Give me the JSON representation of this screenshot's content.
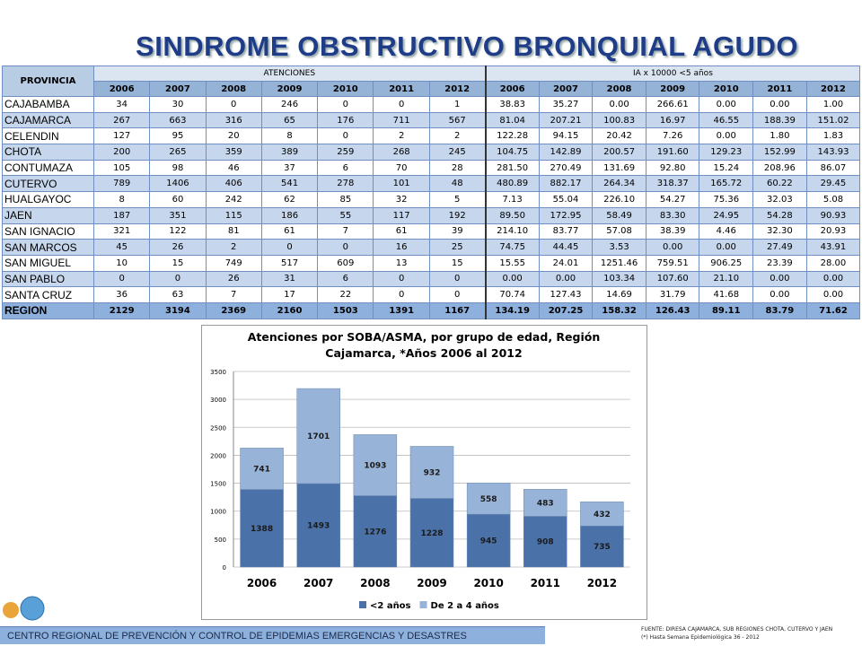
{
  "title": "SINDROME OBSTRUCTIVO BRONQUIAL AGUDO",
  "table": {
    "header": {
      "provincia": "PROVINCIA",
      "group_atenciones": "ATENCIONES",
      "group_ia": "IA x 10000 <5 años",
      "years_atenciones": [
        "2006",
        "2007",
        "2008",
        "2009",
        "2010",
        "2011",
        "2012"
      ],
      "years_ia": [
        "2006",
        "2007",
        "2008",
        "2009",
        "2010",
        "2011",
        "2012"
      ]
    },
    "rows": [
      [
        "CAJABAMBA",
        "34",
        "30",
        "0",
        "246",
        "0",
        "0",
        "1",
        "38.83",
        "35.27",
        "0.00",
        "266.61",
        "0.00",
        "0.00",
        "1.00"
      ],
      [
        "CAJAMARCA",
        "267",
        "663",
        "316",
        "65",
        "176",
        "711",
        "567",
        "81.04",
        "207.21",
        "100.83",
        "16.97",
        "46.55",
        "188.39",
        "151.02"
      ],
      [
        "CELENDIN",
        "127",
        "95",
        "20",
        "8",
        "0",
        "2",
        "2",
        "122.28",
        "94.15",
        "20.42",
        "7.26",
        "0.00",
        "1.80",
        "1.83"
      ],
      [
        "CHOTA",
        "200",
        "265",
        "359",
        "389",
        "259",
        "268",
        "245",
        "104.75",
        "142.89",
        "200.57",
        "191.60",
        "129.23",
        "152.99",
        "143.93"
      ],
      [
        "CONTUMAZA",
        "105",
        "98",
        "46",
        "37",
        "6",
        "70",
        "28",
        "281.50",
        "270.49",
        "131.69",
        "92.80",
        "15.24",
        "208.96",
        "86.07"
      ],
      [
        "CUTERVO",
        "789",
        "1406",
        "406",
        "541",
        "278",
        "101",
        "48",
        "480.89",
        "882.17",
        "264.34",
        "318.37",
        "165.72",
        "60.22",
        "29.45"
      ],
      [
        "HUALGAYOC",
        "8",
        "60",
        "242",
        "62",
        "85",
        "32",
        "5",
        "7.13",
        "55.04",
        "226.10",
        "54.27",
        "75.36",
        "32.03",
        "5.08"
      ],
      [
        "JAEN",
        "187",
        "351",
        "115",
        "186",
        "55",
        "117",
        "192",
        "89.50",
        "172.95",
        "58.49",
        "83.30",
        "24.95",
        "54.28",
        "90.93"
      ],
      [
        "SAN IGNACIO",
        "321",
        "122",
        "81",
        "61",
        "7",
        "61",
        "39",
        "214.10",
        "83.77",
        "57.08",
        "38.39",
        "4.46",
        "32.30",
        "20.93"
      ],
      [
        "SAN MARCOS",
        "45",
        "26",
        "2",
        "0",
        "0",
        "16",
        "25",
        "74.75",
        "44.45",
        "3.53",
        "0.00",
        "0.00",
        "27.49",
        "43.91"
      ],
      [
        "SAN MIGUEL",
        "10",
        "15",
        "749",
        "517",
        "609",
        "13",
        "15",
        "15.55",
        "24.01",
        "1251.46",
        "759.51",
        "906.25",
        "23.39",
        "28.00"
      ],
      [
        "SAN PABLO",
        "0",
        "0",
        "26",
        "31",
        "6",
        "0",
        "0",
        "0.00",
        "0.00",
        "103.34",
        "107.60",
        "21.10",
        "0.00",
        "0.00"
      ],
      [
        "SANTA CRUZ",
        "36",
        "63",
        "7",
        "17",
        "22",
        "0",
        "0",
        "70.74",
        "127.43",
        "14.69",
        "31.79",
        "41.68",
        "0.00",
        "0.00"
      ],
      [
        "REGION",
        "2129",
        "3194",
        "2369",
        "2160",
        "1503",
        "1391",
        "1167",
        "134.19",
        "207.25",
        "158.32",
        "126.43",
        "89.11",
        "83.79",
        "71.62"
      ]
    ]
  },
  "chart_data": {
    "type": "stacked_bar",
    "title": [
      "Atenciones por SOBA/ASMA, por grupo de edad, Región",
      "Cajamarca, *Años 2006 al 2012"
    ],
    "categories": [
      "2006",
      "2007",
      "2008",
      "2009",
      "2010",
      "2011",
      "2012"
    ],
    "series": [
      {
        "name": "<2 años",
        "color": "#4a72a8",
        "values": [
          1388,
          1493,
          1276,
          1228,
          945,
          908,
          735
        ]
      },
      {
        "name": "De 2 a 4 años",
        "color": "#98b3d8",
        "values": [
          741,
          1701,
          1093,
          932,
          558,
          483,
          432
        ]
      }
    ],
    "ylim": [
      0,
      3500
    ],
    "yticks": [
      0,
      500,
      1000,
      1500,
      2000,
      2500,
      3000,
      3500
    ],
    "grid": true,
    "legend": "bottom"
  },
  "footer": {
    "org": "CENTRO REGIONAL DE PREVENCIÓN Y CONTROL DE EPIDEMIAS EMERGENCIAS Y DESASTRES",
    "source": "FUENTE: DIRESA CAJAMARCA, SUB REGIONES CHOTA, CUTERVO Y JAEN",
    "note": "(*) Hasta Semana Epidemiológica 36 - 2012"
  }
}
